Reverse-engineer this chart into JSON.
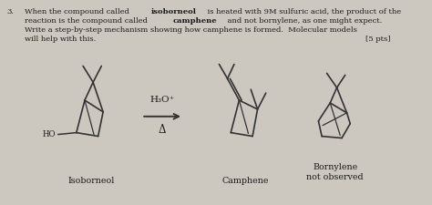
{
  "background_color": "#ccc8c0",
  "text_color": "#1a1a1a",
  "line_color": "#333333",
  "question_number": "3.",
  "line1_plain": "When the compound called ",
  "line1_bold": "isoborneol",
  "line1_rest": " is heated with 9M sulfuric acid, the product of the",
  "line2_plain": "reaction is the compound called ",
  "line2_bold": "camphene",
  "line2_rest": " and not bornylene, as one might expect.",
  "line3": "Write a step-by-step mechanism showing how camphene is formed.  Molecular models",
  "line4": "will help with this.",
  "points": "[5 pts]",
  "label_isoborneol": "Isoborneol",
  "label_camphene": "Camphene",
  "label_bornylene": "Bornylene",
  "label_not_observed": "not observed",
  "arrow_label_top": "H₃O⁺",
  "arrow_label_bottom": "Δ",
  "font_size_text": 6.0,
  "font_size_label": 6.8
}
